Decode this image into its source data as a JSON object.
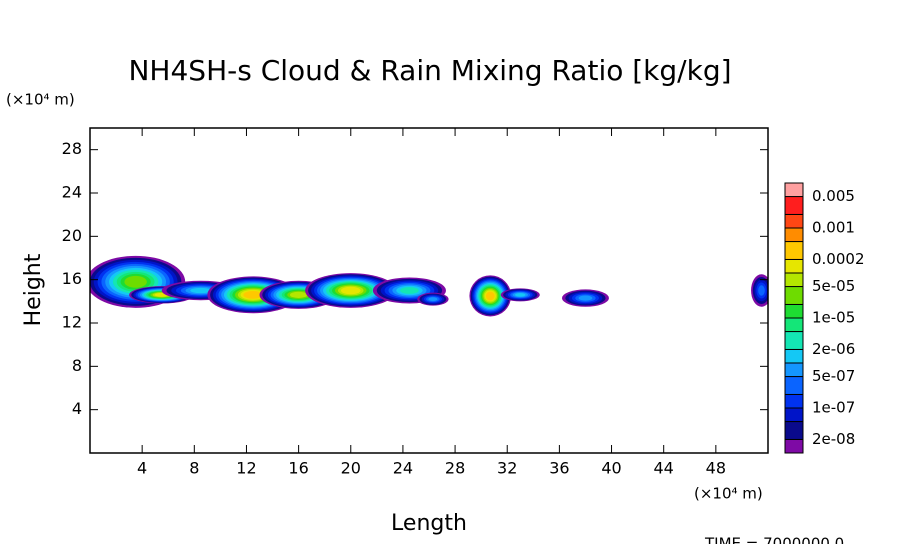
{
  "chart_data": {
    "type": "contour",
    "title": "NH4SH-s Cloud & Rain Mixing Ratio [kg/kg]",
    "x_label": "Length",
    "y_label": "Height",
    "x_unit": "(×10⁴ m)",
    "y_unit": "(×10⁴ m)",
    "footer": "TIME = 7000000.0",
    "xlim": [
      0,
      52
    ],
    "xticks": [
      4,
      8,
      12,
      16,
      20,
      24,
      28,
      32,
      36,
      40,
      44,
      48
    ],
    "ylim": [
      0,
      30
    ],
    "yticks": [
      4,
      8,
      12,
      16,
      20,
      24,
      28
    ],
    "log_scale_colorbar": true,
    "levels": [
      1e-08,
      2e-08,
      5e-08,
      1e-07,
      2e-07,
      5e-07,
      1e-06,
      2e-06,
      5e-06,
      1e-05,
      2e-05,
      5e-05,
      0.0001,
      0.0002,
      0.0005,
      0.001,
      0.002,
      0.005,
      0.01
    ],
    "colors": [
      "#7e0aa5",
      "#0a0a8c",
      "#0014c8",
      "#0032f0",
      "#0a64ff",
      "#1496ff",
      "#14c8f5",
      "#14e6b4",
      "#14e678",
      "#1edc32",
      "#6edc00",
      "#b4e600",
      "#e6e600",
      "#ffc800",
      "#ff8c00",
      "#ff4614",
      "#ff1e1e",
      "#ffa0a0"
    ],
    "colorbar_ticks": [
      {
        "value": 2e-08,
        "label": "2e-08"
      },
      {
        "value": 1e-07,
        "label": "1e-07"
      },
      {
        "value": 5e-07,
        "label": "5e-07"
      },
      {
        "value": 2e-06,
        "label": "2e-06"
      },
      {
        "value": 1e-05,
        "label": "1e-05"
      },
      {
        "value": 5e-05,
        "label": "5e-05"
      },
      {
        "value": 0.0002,
        "label": "0.0002"
      },
      {
        "value": 0.001,
        "label": "0.001"
      },
      {
        "value": 0.005,
        "label": "0.005"
      }
    ],
    "clouds": [
      {
        "x": 3.5,
        "y": 15.8,
        "dx": 3.8,
        "dy": 2.4,
        "peak": 2e-05
      },
      {
        "x": 5.5,
        "y": 14.6,
        "dx": 2.5,
        "dy": 0.8,
        "peak": 0.0001
      },
      {
        "x": 8.5,
        "y": 15,
        "dx": 3,
        "dy": 0.9,
        "peak": 1e-06
      },
      {
        "x": 12.5,
        "y": 14.6,
        "dx": 3.5,
        "dy": 1.7,
        "peak": 0.0002
      },
      {
        "x": 16,
        "y": 14.6,
        "dx": 3,
        "dy": 1.3,
        "peak": 5e-05
      },
      {
        "x": 20,
        "y": 15,
        "dx": 3.5,
        "dy": 1.6,
        "peak": 0.0001
      },
      {
        "x": 24.5,
        "y": 15,
        "dx": 2.8,
        "dy": 1.2,
        "peak": 2e-06
      },
      {
        "x": 26.3,
        "y": 14.2,
        "dx": 1.2,
        "dy": 0.6,
        "peak": 5e-07
      },
      {
        "x": 30.7,
        "y": 14.5,
        "dx": 1.6,
        "dy": 1.9,
        "peak": 0.0002
      },
      {
        "x": 33,
        "y": 14.6,
        "dx": 1.5,
        "dy": 0.6,
        "peak": 1e-06
      },
      {
        "x": 38,
        "y": 14.3,
        "dx": 1.8,
        "dy": 0.8,
        "peak": 5e-07
      },
      {
        "x": 51.5,
        "y": 15,
        "dx": 0.8,
        "dy": 1.5,
        "peak": 2e-07
      }
    ]
  }
}
